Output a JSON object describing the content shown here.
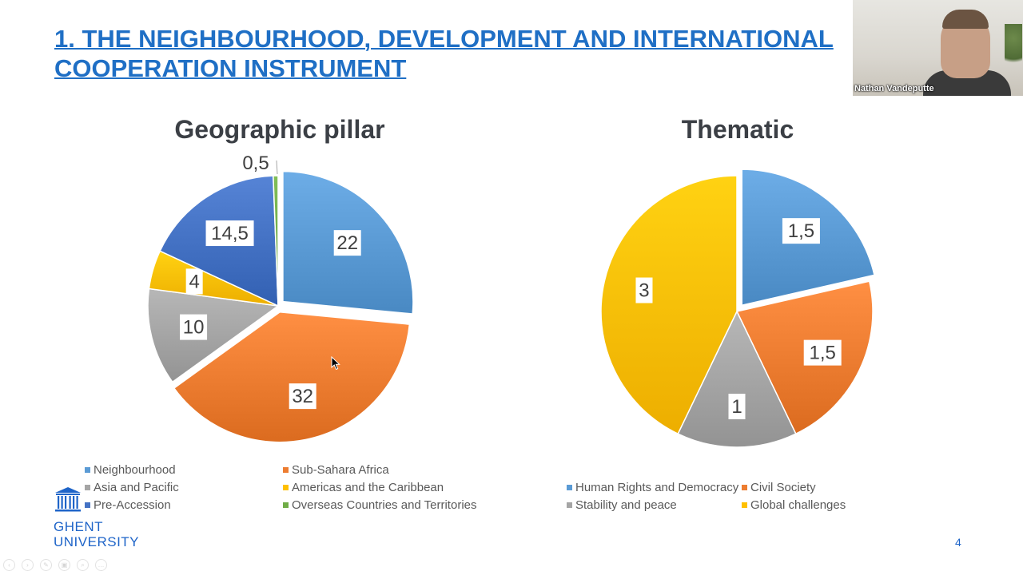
{
  "slide": {
    "title_line1": "1. THE NEIGHBOURHOOD, DEVELOPMENT AND INTERNATIONAL",
    "title_line2": "COOPERATION INSTRUMENT",
    "page_number": "4"
  },
  "video": {
    "participant_name": "Nathan Vandeputte"
  },
  "logo": {
    "line1": "GHENT",
    "line2": "UNIVERSITY"
  },
  "colors": {
    "title": "#1f6fc5",
    "neighbourhood": "#5b9bd5",
    "sub_sahara": "#ed7d31",
    "asia_pacific": "#a5a5a5",
    "americas": "#ffc000",
    "pre_accession": "#4472c4",
    "overseas": "#70ad47",
    "brand": "#1e64c8"
  },
  "player_controls": {
    "icons": [
      "prev-icon",
      "next-icon",
      "pen-icon",
      "layout-icon",
      "zoom-icon",
      "more-icon"
    ],
    "glyphs": [
      "‹",
      "›",
      "✎",
      "▣",
      "⌕",
      "…"
    ]
  },
  "chart_data": [
    {
      "type": "pie",
      "title": "Geographic pillar",
      "legend_position": "bottom",
      "categories": [
        "Neighbourhood",
        "Sub-Sahara Africa",
        "Asia and Pacific",
        "Americas and the Caribbean",
        "Pre-Accession",
        "Overseas Countries and Territories"
      ],
      "values": [
        22,
        32,
        10,
        4,
        14.5,
        0.5
      ],
      "data_labels": [
        "22",
        "32",
        "10",
        "4",
        "14,5",
        "0,5"
      ],
      "colors": [
        "#5b9bd5",
        "#ed7d31",
        "#a5a5a5",
        "#ffc000",
        "#4472c4",
        "#70ad47"
      ],
      "exploded": [
        true,
        true,
        false,
        false,
        false,
        false
      ]
    },
    {
      "type": "pie",
      "title": "Thematic",
      "legend_position": "bottom",
      "categories": [
        "Human Rights and Democracy",
        "Civil Society",
        "Stability and peace",
        "Global challenges"
      ],
      "values": [
        1.5,
        1.5,
        1,
        3
      ],
      "data_labels": [
        "1,5",
        "1,5",
        "1",
        "3"
      ],
      "colors": [
        "#5b9bd5",
        "#ed7d31",
        "#a5a5a5",
        "#ffc000"
      ],
      "exploded": [
        true,
        false,
        false,
        false
      ]
    }
  ]
}
